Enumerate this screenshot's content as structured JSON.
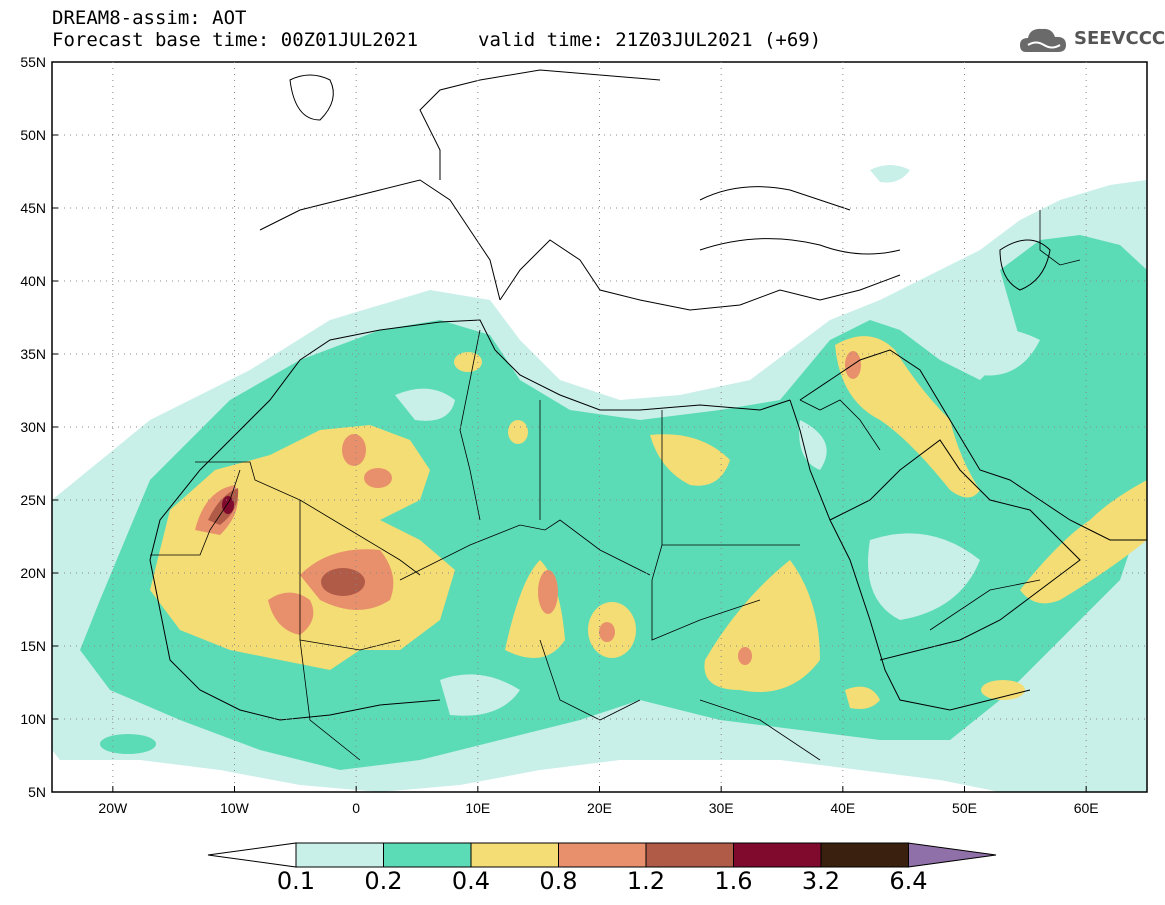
{
  "header": {
    "line1": "DREAM8-assim: AOT",
    "line2": "Forecast base time: 00Z01JUL2021",
    "valid": "valid time: 21Z03JUL2021 (+69)"
  },
  "logo": {
    "text": "SEEVCCC",
    "icon": "cloud-icon"
  },
  "axes": {
    "lat_labels": [
      "55N",
      "50N",
      "45N",
      "40N",
      "35N",
      "30N",
      "25N",
      "20N",
      "15N",
      "10N",
      "5N"
    ],
    "lon_labels": [
      "20W",
      "10W",
      "0",
      "10E",
      "20E",
      "30E",
      "40E",
      "50E",
      "60E"
    ],
    "lat_range": [
      5,
      55
    ],
    "lon_range": [
      -25,
      65
    ]
  },
  "colorbar": {
    "labels": [
      "0.1",
      "0.2",
      "0.4",
      "0.8",
      "1.2",
      "1.6",
      "3.2",
      "6.4"
    ],
    "colors": [
      "#c8efe8",
      "#5cdcb6",
      "#f4dd74",
      "#e8906c",
      "#b05a48",
      "#800a2e",
      "#3a200e",
      "#9070a8"
    ]
  }
}
